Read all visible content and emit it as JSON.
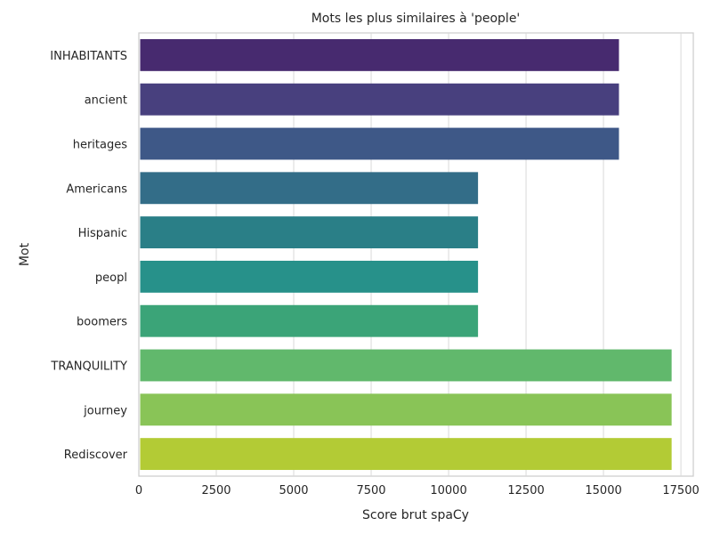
{
  "chart_data": {
    "type": "bar",
    "orientation": "horizontal",
    "title": "Mots les plus similaires à 'people'",
    "xlabel": "Score brut spaCy",
    "ylabel": "Mot",
    "xlim": [
      0,
      17900
    ],
    "xticks": [
      0,
      2500,
      5000,
      7500,
      10000,
      12500,
      15000,
      17500
    ],
    "grid": "x",
    "categories": [
      "INHABITANTS",
      "ancient",
      "heritages",
      "Americans",
      "Hispanic",
      "peopl",
      "boomers",
      "TRANQUILITY",
      "journey",
      "Rediscover"
    ],
    "values": [
      15500,
      15500,
      15500,
      10950,
      10950,
      10950,
      10950,
      17200,
      17200,
      17200
    ],
    "colors": [
      "#472a6f",
      "#48407e",
      "#3e5887",
      "#336d88",
      "#2a7f87",
      "#27918a",
      "#3ba478",
      "#61b86c",
      "#89c457",
      "#b3cb35"
    ]
  }
}
